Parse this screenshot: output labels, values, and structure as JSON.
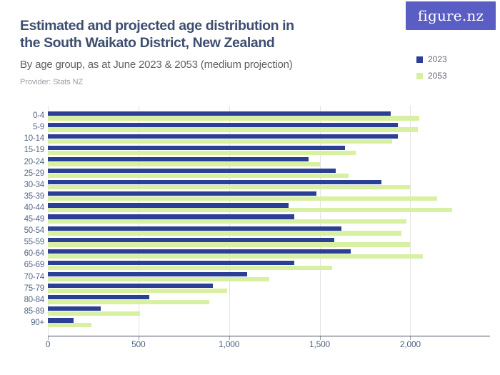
{
  "header": {
    "title_line1": "Estimated and projected age distribution in",
    "title_line2": "the South Waikato District, New Zealand",
    "subtitle": "By age group, as at June 2023 & 2053 (medium projection)",
    "provider": "Provider: Stats NZ",
    "logo_text": "figure.nz"
  },
  "legend": {
    "items": [
      {
        "label": "2023",
        "color": "#2b3f96"
      },
      {
        "label": "2053",
        "color": "#d7f0a2"
      }
    ]
  },
  "colors": {
    "series_2023": "#2b3f96",
    "series_2053": "#d7f0a2",
    "title": "#3e4e70",
    "logo_background": "#5a5ec4",
    "axis_line": "#454e5c",
    "gridline": "#e2e3e5"
  },
  "chart_data": {
    "type": "bar",
    "orientation": "horizontal",
    "title": "Estimated and projected age distribution in the South Waikato District, New Zealand",
    "subtitle": "By age group, as at June 2023 & 2053 (medium projection)",
    "provider": "Provider: Stats NZ",
    "categories": [
      "0-4",
      "5-9",
      "10-14",
      "15-19",
      "20-24",
      "25-29",
      "30-34",
      "35-39",
      "40-44",
      "45-49",
      "50-54",
      "55-59",
      "60-64",
      "65-69",
      "70-74",
      "75-79",
      "80-84",
      "85-89",
      "90+"
    ],
    "series": [
      {
        "name": "2023",
        "color": "#2b3f96",
        "values": [
          1890,
          1930,
          1930,
          1640,
          1440,
          1590,
          1840,
          1480,
          1330,
          1360,
          1620,
          1580,
          1670,
          1360,
          1100,
          910,
          560,
          290,
          140
        ]
      },
      {
        "name": "2053",
        "color": "#d7f0a2",
        "values": [
          2050,
          2040,
          1900,
          1700,
          1500,
          1660,
          2000,
          2150,
          2230,
          1980,
          1950,
          2000,
          2070,
          1570,
          1220,
          990,
          890,
          510,
          240
        ]
      }
    ],
    "xlabel": "",
    "ylabel": "",
    "xlim": [
      0,
      2440
    ],
    "x_ticks": [
      0,
      500,
      1000,
      1500,
      2000
    ],
    "x_tick_labels": [
      "0",
      "500",
      "1,000",
      "1,500",
      "2,000"
    ],
    "grid": true,
    "legend_position": "top-right"
  }
}
